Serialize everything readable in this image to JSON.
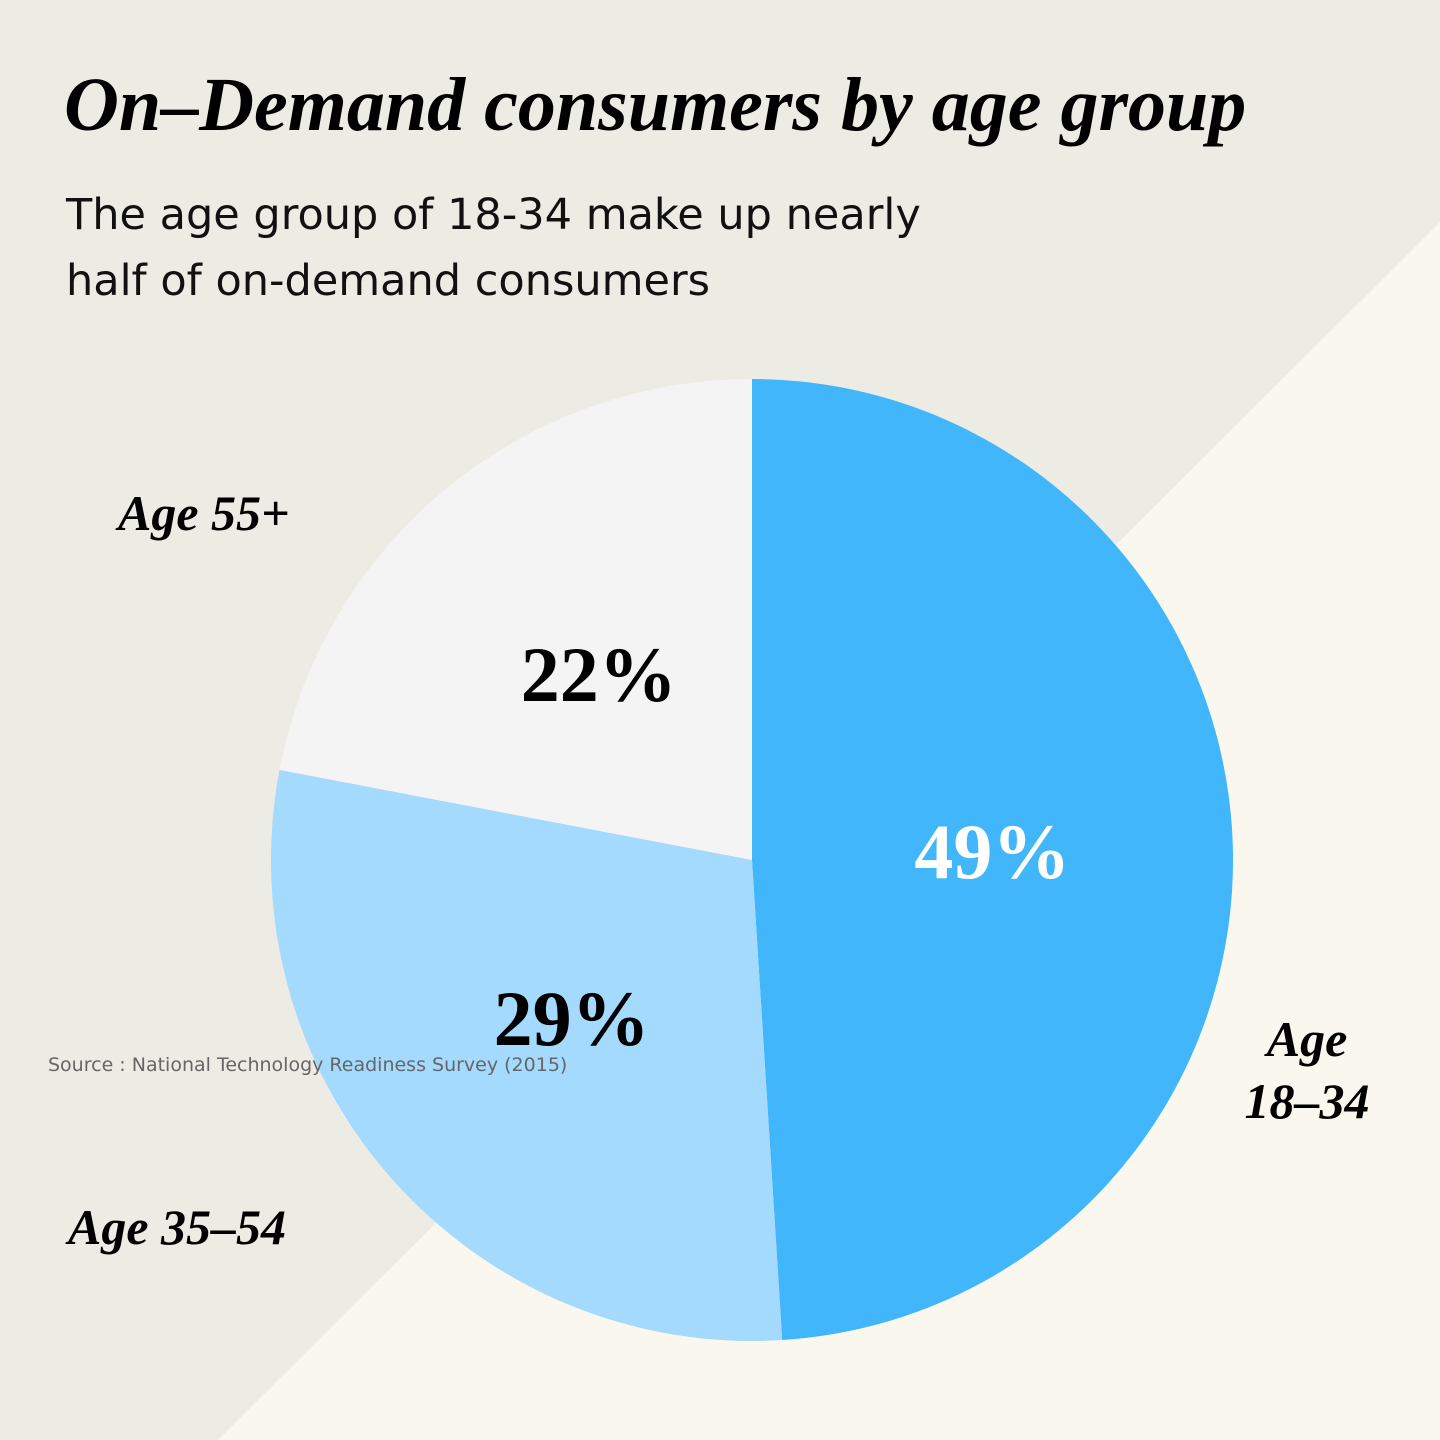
{
  "chart_data": {
    "type": "pie",
    "title": "On–Demand consumers by age group",
    "subtitle": "The age group of 18-34 make up nearly half of on-demand consumers",
    "categories": [
      "Age 18–34",
      "Age 35–54",
      "Age 55+"
    ],
    "values": [
      49,
      29,
      22
    ],
    "value_labels": [
      "49%",
      "29%",
      "22%"
    ],
    "colors": [
      "#42b6fb",
      "#a3dafd",
      "#f4f4f4"
    ],
    "value_label_colors": [
      "#ffffff",
      "#000000",
      "#000000"
    ],
    "source": "Source : National Technology Readiness Survey (2015)"
  }
}
